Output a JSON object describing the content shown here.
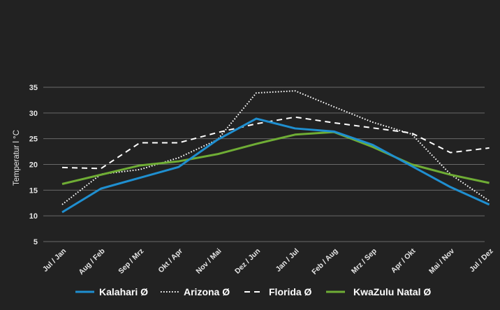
{
  "chart_data": {
    "type": "line",
    "ylabel": "Temperatur  l °C",
    "xlabel": "",
    "title": "",
    "ylim": [
      5,
      35
    ],
    "yticks": [
      5,
      10,
      15,
      20,
      25,
      30,
      35
    ],
    "grid": true,
    "legend_position": "bottom",
    "categories": [
      "Jul / Jan",
      "Aug / Feb",
      "Sep / Mrz",
      "Okt / Apr",
      "Nov / Mai",
      "Dez / Jun",
      "Jan / Jul",
      "Feb / Aug",
      "Mrz / Sep",
      "Apr / Okt",
      "Mai / Nov",
      "Jul / Dez"
    ],
    "series": [
      {
        "name": "Kalahari Ø",
        "color": "#1f8fd0",
        "dash": "solid",
        "values": [
          10.7,
          15.3,
          17.4,
          19.5,
          24.8,
          28.9,
          27.0,
          26.4,
          23.8,
          19.7,
          15.6,
          12.2
        ]
      },
      {
        "name": "Arizona Ø",
        "color": "#ffffff",
        "dash": "dotted",
        "values": [
          12.2,
          18.1,
          19.0,
          21.3,
          24.8,
          33.9,
          34.3,
          31.2,
          28.2,
          25.9,
          18.1,
          12.9
        ]
      },
      {
        "name": "Florida Ø",
        "color": "#ffffff",
        "dash": "dashed",
        "values": [
          19.4,
          19.2,
          24.2,
          24.2,
          26.2,
          27.9,
          29.2,
          28.1,
          27.1,
          26.1,
          22.3,
          23.2
        ]
      },
      {
        "name": "KwaZulu Natal Ø",
        "color": "#6fad35",
        "dash": "solid",
        "values": [
          16.2,
          18.0,
          19.8,
          20.6,
          22.0,
          24.0,
          25.8,
          26.3,
          23.4,
          20.0,
          18.0,
          16.4
        ]
      }
    ]
  }
}
